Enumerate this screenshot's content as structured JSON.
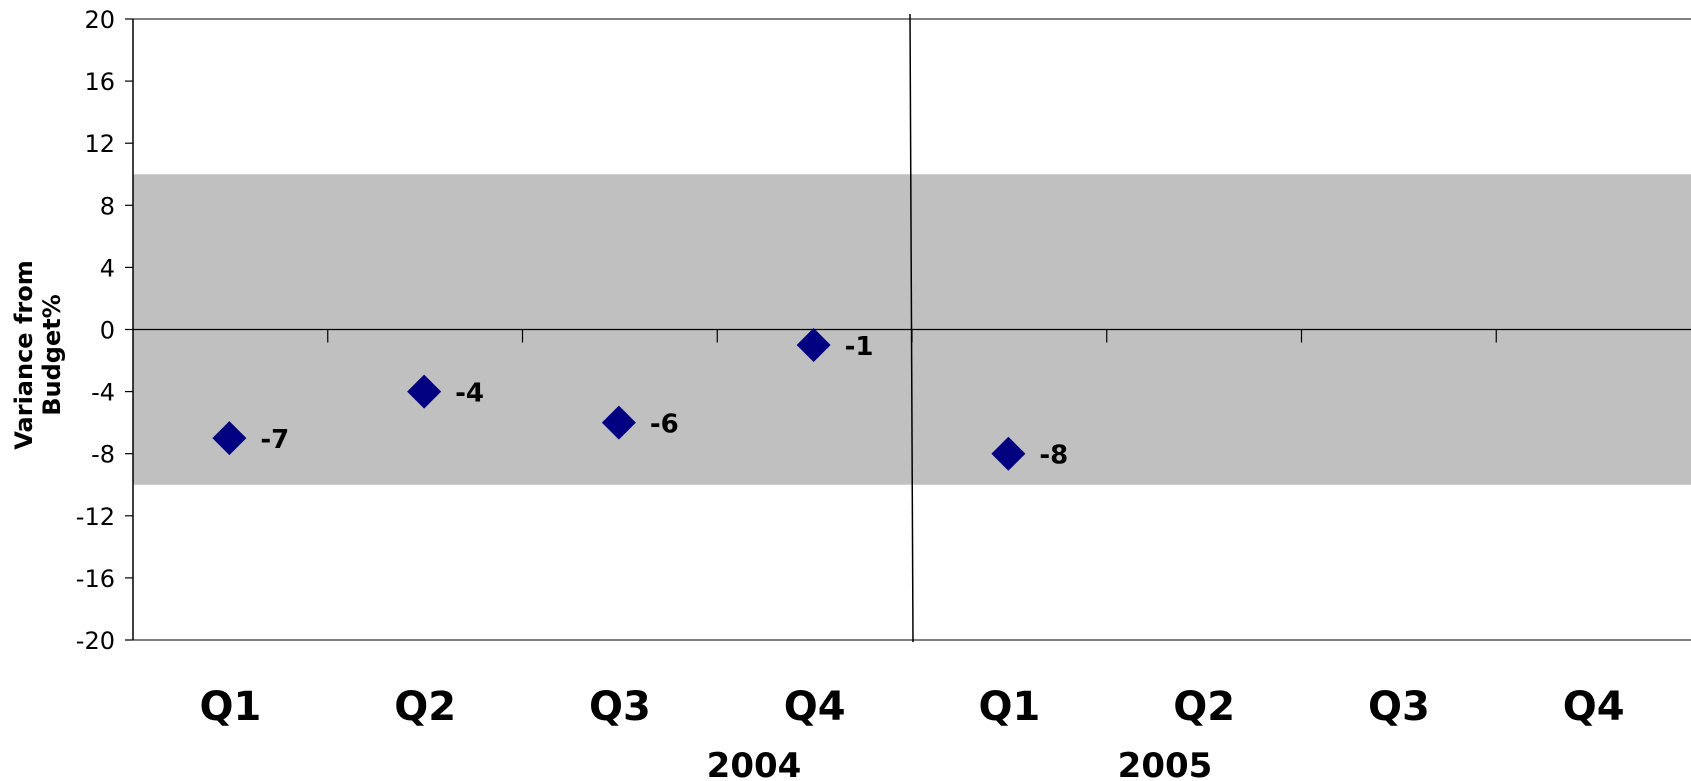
{
  "chart_data": {
    "type": "scatter",
    "title": "",
    "xlabel": "",
    "ylabel_lines": [
      "Variance from",
      "Budget%"
    ],
    "ylim": [
      -20,
      20
    ],
    "yticks": [
      20,
      16,
      12,
      8,
      4,
      0,
      -4,
      -8,
      -12,
      -16,
      -20
    ],
    "categories": [
      "Q1",
      "Q2",
      "Q3",
      "Q4",
      "Q1",
      "Q2",
      "Q3",
      "Q4"
    ],
    "groups": [
      {
        "label": "2004",
        "categories": [
          "Q1",
          "Q2",
          "Q3",
          "Q4"
        ]
      },
      {
        "label": "2005",
        "categories": [
          "Q1",
          "Q2",
          "Q3",
          "Q4"
        ]
      }
    ],
    "band": {
      "from": -10,
      "to": 10,
      "color": "#c0c0c0"
    },
    "marker_color": "#000080",
    "points": [
      {
        "index": 0,
        "value": -7,
        "label": "-7"
      },
      {
        "index": 1,
        "value": -4,
        "label": "-4"
      },
      {
        "index": 2,
        "value": -6,
        "label": "-6"
      },
      {
        "index": 3,
        "value": -1,
        "label": "-1"
      },
      {
        "index": 4,
        "value": -8,
        "label": "-8"
      }
    ],
    "grid": false,
    "legend": "none"
  }
}
